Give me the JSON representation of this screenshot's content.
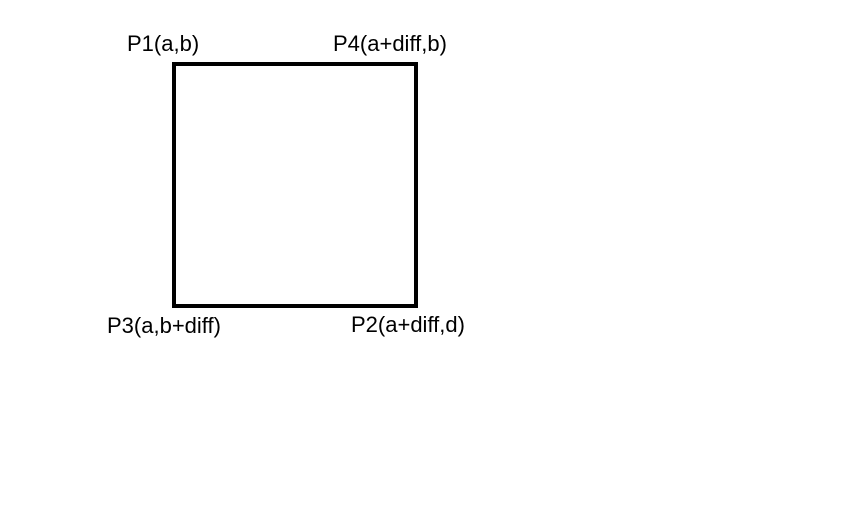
{
  "diagram": {
    "shape": "square",
    "stroke_color": "#000000",
    "fill_color": "#ffffff",
    "background_color": "#ffffff",
    "corners": {
      "top_left": {
        "label": "P1(a,b)"
      },
      "top_right": {
        "label": "P4(a+diff,b)"
      },
      "bottom_left": {
        "label": "P3(a,b+diff)"
      },
      "bottom_right": {
        "label": "P2(a+diff,d)"
      }
    }
  }
}
